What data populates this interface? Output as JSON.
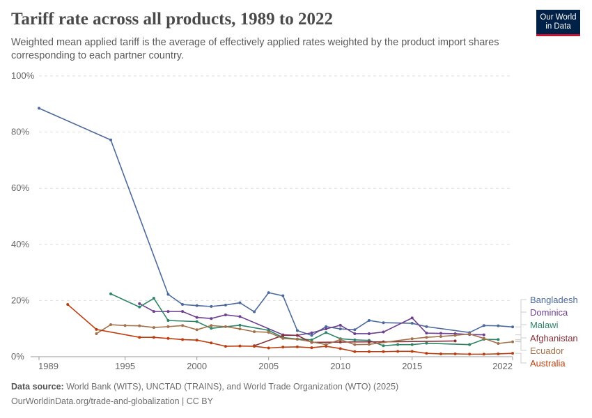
{
  "header": {
    "title": "Tariff rate across all products, 1989 to 2022",
    "subtitle": "Weighted mean applied tariff is the average of effectively applied rates weighted by the product import shares corresponding to each partner country.",
    "logo": "Our World in Data"
  },
  "footer": {
    "source_label": "Data source:",
    "source": "World Bank (WITS), UNCTAD (TRAINS), and World Trade Organization (WTO) (2025)",
    "link": "OurWorldinData.org/trade-and-globalization | CC BY"
  },
  "chart_data": {
    "type": "line",
    "xlim": [
      1989,
      2022
    ],
    "ylim": [
      0,
      100
    ],
    "x_ticks": [
      "1989",
      "1995",
      "2000",
      "2005",
      "2010",
      "2015",
      "2022"
    ],
    "y_ticks": [
      "0%",
      "20%",
      "40%",
      "60%",
      "80%",
      "100%"
    ],
    "grid": "horizontal dashed",
    "legend": "right",
    "series": [
      {
        "name": "Bangladesh",
        "color": "#4c6a9c",
        "points": [
          [
            1989,
            88.5
          ],
          [
            1994,
            77.2
          ],
          [
            1998,
            22.2
          ],
          [
            1999,
            18.6
          ],
          [
            2000,
            18.2
          ],
          [
            2001,
            17.9
          ],
          [
            2002,
            18.4
          ],
          [
            2003,
            19.2
          ],
          [
            2004,
            16.0
          ],
          [
            2005,
            22.8
          ],
          [
            2006,
            21.7
          ],
          [
            2007,
            9.3
          ],
          [
            2008,
            7.6
          ],
          [
            2009,
            10.7
          ],
          [
            2010,
            9.9
          ],
          [
            2011,
            9.6
          ],
          [
            2012,
            12.9
          ],
          [
            2013,
            12.1
          ],
          [
            2015,
            11.9
          ],
          [
            2016,
            10.7
          ],
          [
            2019,
            8.6
          ],
          [
            2020,
            11.1
          ],
          [
            2021,
            11.0
          ],
          [
            2022,
            10.6
          ]
        ]
      },
      {
        "name": "Dominica",
        "color": "#6d3e91",
        "points": [
          [
            1996,
            18.9
          ],
          [
            1997,
            16.1
          ],
          [
            1998,
            16.1
          ],
          [
            1999,
            16.1
          ],
          [
            2000,
            14.0
          ],
          [
            2001,
            13.6
          ],
          [
            2002,
            14.9
          ],
          [
            2003,
            14.3
          ],
          [
            2006,
            7.8
          ],
          [
            2007,
            7.6
          ],
          [
            2008,
            8.5
          ],
          [
            2009,
            9.9
          ],
          [
            2010,
            11.2
          ],
          [
            2011,
            8.2
          ],
          [
            2012,
            8.2
          ],
          [
            2013,
            8.8
          ],
          [
            2015,
            13.8
          ],
          [
            2016,
            8.4
          ],
          [
            2017,
            8.3
          ],
          [
            2018,
            8.2
          ],
          [
            2019,
            7.9
          ],
          [
            2020,
            7.8
          ]
        ]
      },
      {
        "name": "Malawi",
        "color": "#2c8465",
        "points": [
          [
            1994,
            22.4
          ],
          [
            1996,
            17.7
          ],
          [
            1997,
            20.8
          ],
          [
            1998,
            12.9
          ],
          [
            2000,
            12.5
          ],
          [
            2001,
            10.1
          ],
          [
            2003,
            11.2
          ],
          [
            2005,
            9.4
          ],
          [
            2006,
            6.8
          ],
          [
            2007,
            6.3
          ],
          [
            2008,
            6.0
          ],
          [
            2009,
            8.6
          ],
          [
            2010,
            6.4
          ],
          [
            2011,
            6.0
          ],
          [
            2012,
            5.8
          ],
          [
            2013,
            3.9
          ],
          [
            2014,
            4.3
          ],
          [
            2015,
            4.3
          ],
          [
            2016,
            4.8
          ],
          [
            2019,
            4.3
          ],
          [
            2020,
            6.2
          ],
          [
            2021,
            6.1
          ]
        ]
      },
      {
        "name": "Afghanistan",
        "color": "#883039",
        "points": [
          [
            2004,
            3.9
          ],
          [
            2006,
            7.6
          ],
          [
            2007,
            7.6
          ],
          [
            2008,
            5.1
          ],
          [
            2010,
            5.2
          ],
          [
            2012,
            5.3
          ],
          [
            2013,
            5.3
          ],
          [
            2018,
            5.6
          ]
        ]
      },
      {
        "name": "Ecuador",
        "color": "#a2714a",
        "points": [
          [
            1993,
            8.2
          ],
          [
            1994,
            11.4
          ],
          [
            1995,
            11.1
          ],
          [
            1996,
            11.0
          ],
          [
            1997,
            10.4
          ],
          [
            1998,
            10.7
          ],
          [
            1999,
            11.1
          ],
          [
            2000,
            9.6
          ],
          [
            2001,
            11.1
          ],
          [
            2002,
            10.7
          ],
          [
            2003,
            9.9
          ],
          [
            2004,
            8.9
          ],
          [
            2005,
            8.7
          ],
          [
            2006,
            6.5
          ],
          [
            2007,
            6.2
          ],
          [
            2008,
            5.3
          ],
          [
            2009,
            4.3
          ],
          [
            2010,
            6.1
          ],
          [
            2011,
            4.3
          ],
          [
            2012,
            4.4
          ],
          [
            2015,
            6.4
          ],
          [
            2016,
            6.9
          ],
          [
            2017,
            7.2
          ],
          [
            2018,
            7.6
          ],
          [
            2019,
            8.1
          ],
          [
            2020,
            6.5
          ],
          [
            2021,
            4.7
          ],
          [
            2022,
            5.3
          ]
        ]
      },
      {
        "name": "Australia",
        "color": "#be3d0e",
        "points": [
          [
            1991,
            18.6
          ],
          [
            1993,
            9.7
          ],
          [
            1996,
            6.9
          ],
          [
            1997,
            6.9
          ],
          [
            1998,
            6.5
          ],
          [
            1999,
            6.1
          ],
          [
            2000,
            5.9
          ],
          [
            2001,
            4.9
          ],
          [
            2002,
            3.7
          ],
          [
            2003,
            3.8
          ],
          [
            2004,
            3.7
          ],
          [
            2005,
            3.1
          ],
          [
            2006,
            3.4
          ],
          [
            2007,
            3.5
          ],
          [
            2008,
            3.2
          ],
          [
            2009,
            3.7
          ],
          [
            2010,
            2.9
          ],
          [
            2011,
            1.8
          ],
          [
            2012,
            1.8
          ],
          [
            2013,
            1.8
          ],
          [
            2014,
            1.9
          ],
          [
            2015,
            1.9
          ],
          [
            2016,
            1.2
          ],
          [
            2017,
            1.0
          ],
          [
            2018,
            1.0
          ],
          [
            2019,
            0.9
          ],
          [
            2020,
            0.9
          ],
          [
            2021,
            1.0
          ],
          [
            2022,
            1.2
          ]
        ]
      }
    ]
  }
}
